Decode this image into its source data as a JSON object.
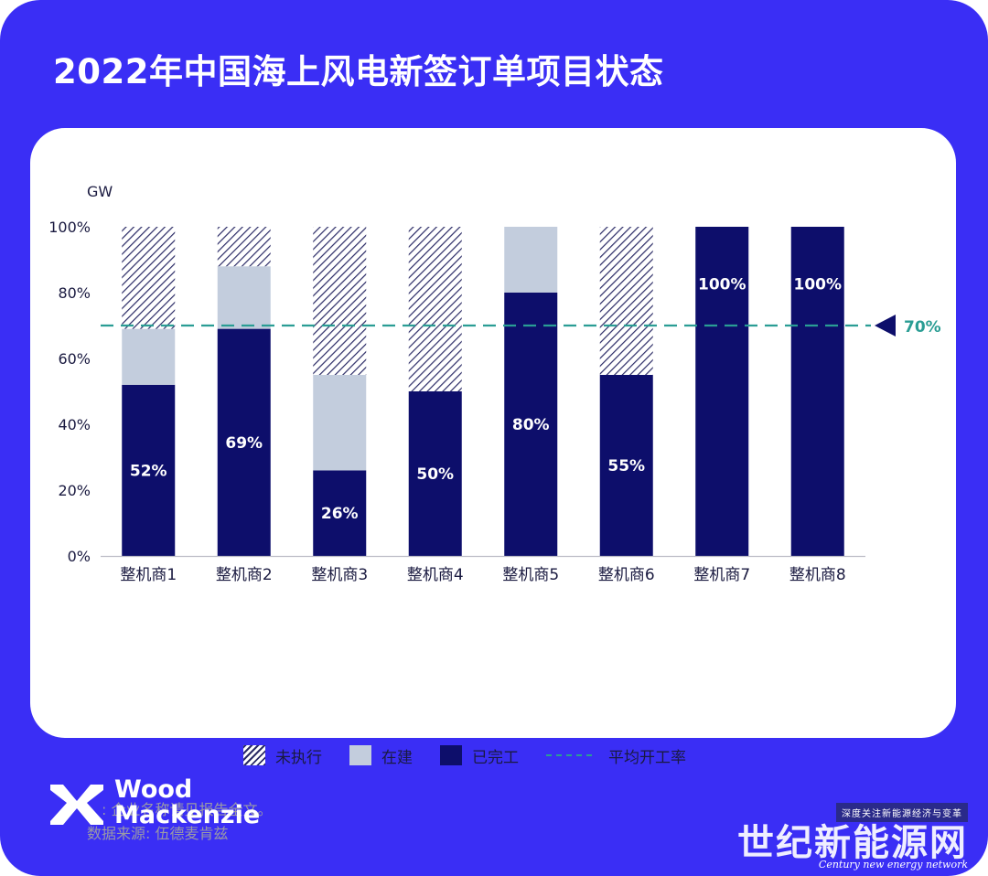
{
  "title": "2022年中国海上风电新签订单项目状态",
  "chart_data": {
    "type": "bar",
    "stacked": true,
    "ylabel": "GW",
    "ylim": [
      0,
      100
    ],
    "yticks": [
      "0%",
      "20%",
      "40%",
      "60%",
      "80%",
      "100%"
    ],
    "categories": [
      "整机商1",
      "整机商2",
      "整机商3",
      "整机商4",
      "整机商5",
      "整机商6",
      "整机商7",
      "整机商8"
    ],
    "series": [
      {
        "name": "已完工",
        "values": [
          52,
          69,
          26,
          50,
          80,
          55,
          100,
          100
        ],
        "color": "#0d0e6b"
      },
      {
        "name": "在建",
        "values": [
          17,
          19,
          29,
          0,
          20,
          0,
          0,
          0
        ],
        "color": "#c3cddd"
      },
      {
        "name": "未执行",
        "values": [
          31,
          12,
          45,
          50,
          0,
          45,
          0,
          0
        ],
        "color": "hatch"
      }
    ],
    "data_labels": [
      "52%",
      "69%",
      "26%",
      "50%",
      "80%",
      "55%",
      "100%",
      "100%"
    ],
    "reference_line": {
      "name": "平均开工率",
      "value": 70,
      "label": "70%",
      "color": "#2a9d94"
    },
    "grid": false,
    "legend_position": "bottom"
  },
  "notes": {
    "line1": "注: 企业名称请见报告全文。",
    "line2": "数据来源: 伍德麦肯兹"
  },
  "logo": {
    "line1": "Wood",
    "line2": "Mackenzie"
  },
  "watermark": {
    "tag": "深度关注新能源经济与变革",
    "main": "世纪新能源网",
    "sub": "Century new energy network"
  }
}
